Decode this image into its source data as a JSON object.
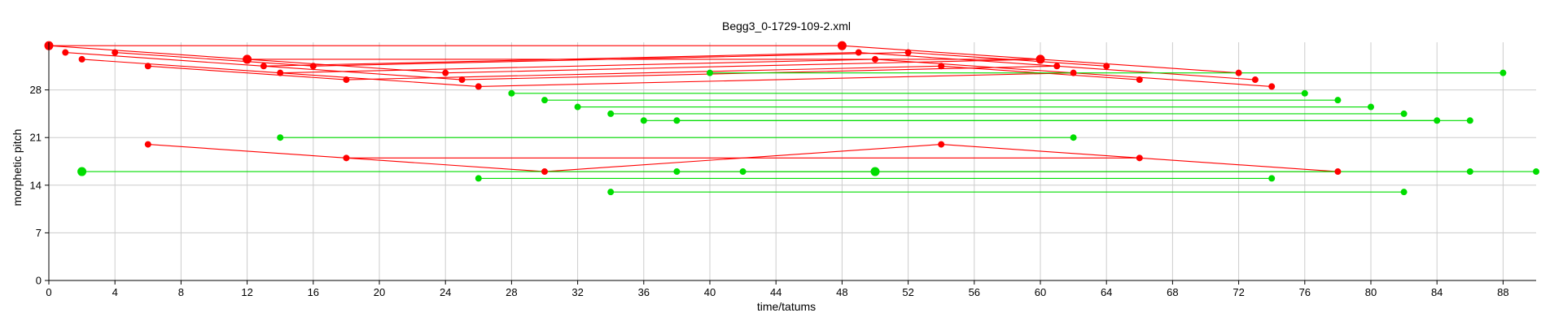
{
  "chart_data": {
    "type": "scatter",
    "title": "Begg3_0-1729-109-2.xml",
    "xlabel": "time/tatums",
    "ylabel": "morphetic pitch",
    "xlim": [
      0,
      90
    ],
    "ylim": [
      0,
      35
    ],
    "xticks": [
      0,
      4,
      8,
      12,
      16,
      20,
      24,
      28,
      32,
      36,
      40,
      44,
      48,
      52,
      56,
      60,
      64,
      68,
      72,
      76,
      80,
      84,
      88
    ],
    "yticks": [
      0,
      7,
      14,
      21,
      28
    ],
    "grid": true,
    "colors": {
      "red": "#ff0000",
      "green": "#00dd00",
      "grid": "#cccccc",
      "axis": "#000000"
    },
    "series": [
      {
        "color": "red",
        "points": [
          {
            "x": 0,
            "y": 34.5,
            "large": true
          },
          {
            "x": 1,
            "y": 33.5
          },
          {
            "x": 2,
            "y": 32.5
          },
          {
            "x": 4,
            "y": 33.5
          },
          {
            "x": 6,
            "y": 31.5
          },
          {
            "x": 12,
            "y": 32.5,
            "large": true
          },
          {
            "x": 13,
            "y": 31.5
          },
          {
            "x": 14,
            "y": 30.5
          },
          {
            "x": 16,
            "y": 31.5
          },
          {
            "x": 18,
            "y": 29.5
          },
          {
            "x": 24,
            "y": 30.5
          },
          {
            "x": 25,
            "y": 29.5
          },
          {
            "x": 26,
            "y": 28.5
          },
          {
            "x": 48,
            "y": 34.5,
            "large": true
          },
          {
            "x": 49,
            "y": 33.5
          },
          {
            "x": 50,
            "y": 32.5
          },
          {
            "x": 52,
            "y": 33.5
          },
          {
            "x": 54,
            "y": 31.5
          },
          {
            "x": 60,
            "y": 32.5,
            "large": true
          },
          {
            "x": 61,
            "y": 31.5
          },
          {
            "x": 62,
            "y": 30.5
          },
          {
            "x": 64,
            "y": 31.5
          },
          {
            "x": 66,
            "y": 29.5
          },
          {
            "x": 72,
            "y": 30.5
          },
          {
            "x": 73,
            "y": 29.5
          },
          {
            "x": 74,
            "y": 28.5
          },
          {
            "x": 6,
            "y": 20
          },
          {
            "x": 18,
            "y": 18
          },
          {
            "x": 30,
            "y": 16
          },
          {
            "x": 54,
            "y": 20
          },
          {
            "x": 66,
            "y": 18
          },
          {
            "x": 78,
            "y": 16
          }
        ],
        "lines": [
          [
            [
              0,
              34.5
            ],
            [
              48,
              34.5
            ]
          ],
          [
            [
              12,
              32.5
            ],
            [
              60,
              32.5
            ]
          ],
          [
            [
              0,
              34.5
            ],
            [
              12,
              32.5
            ]
          ],
          [
            [
              48,
              34.5
            ],
            [
              60,
              32.5
            ]
          ],
          [
            [
              1,
              33.5
            ],
            [
              13,
              31.5
            ]
          ],
          [
            [
              13,
              31.5
            ],
            [
              49,
              33.5
            ]
          ],
          [
            [
              49,
              33.5
            ],
            [
              61,
              31.5
            ]
          ],
          [
            [
              4,
              33.5
            ],
            [
              16,
              31.5
            ]
          ],
          [
            [
              16,
              31.5
            ],
            [
              52,
              33.5
            ]
          ],
          [
            [
              52,
              33.5
            ],
            [
              64,
              31.5
            ]
          ],
          [
            [
              2,
              32.5
            ],
            [
              14,
              30.5
            ]
          ],
          [
            [
              14,
              30.5
            ],
            [
              50,
              32.5
            ]
          ],
          [
            [
              50,
              32.5
            ],
            [
              62,
              30.5
            ]
          ],
          [
            [
              12,
              32.5
            ],
            [
              24,
              30.5
            ]
          ],
          [
            [
              24,
              30.5
            ],
            [
              60,
              32.5
            ]
          ],
          [
            [
              60,
              32.5
            ],
            [
              72,
              30.5
            ]
          ],
          [
            [
              13,
              31.5
            ],
            [
              25,
              29.5
            ]
          ],
          [
            [
              25,
              29.5
            ],
            [
              61,
              31.5
            ]
          ],
          [
            [
              61,
              31.5
            ],
            [
              73,
              29.5
            ]
          ],
          [
            [
              6,
              31.5
            ],
            [
              18,
              29.5
            ]
          ],
          [
            [
              18,
              29.5
            ],
            [
              54,
              31.5
            ]
          ],
          [
            [
              54,
              31.5
            ],
            [
              66,
              29.5
            ]
          ],
          [
            [
              14,
              30.5
            ],
            [
              26,
              28.5
            ]
          ],
          [
            [
              26,
              28.5
            ],
            [
              62,
              30.5
            ]
          ],
          [
            [
              62,
              30.5
            ],
            [
              74,
              28.5
            ]
          ],
          [
            [
              6,
              20
            ],
            [
              18,
              18
            ]
          ],
          [
            [
              18,
              18
            ],
            [
              66,
              18
            ]
          ],
          [
            [
              18,
              18
            ],
            [
              30,
              16
            ]
          ],
          [
            [
              30,
              16
            ],
            [
              54,
              20
            ]
          ],
          [
            [
              54,
              20
            ],
            [
              66,
              18
            ]
          ],
          [
            [
              30,
              16
            ],
            [
              78,
              16
            ]
          ],
          [
            [
              66,
              18
            ],
            [
              78,
              16
            ]
          ]
        ]
      },
      {
        "color": "green",
        "points": [
          {
            "x": 40,
            "y": 30.5
          },
          {
            "x": 88,
            "y": 30.5
          },
          {
            "x": 28,
            "y": 27.5
          },
          {
            "x": 76,
            "y": 27.5
          },
          {
            "x": 30,
            "y": 26.5
          },
          {
            "x": 78,
            "y": 26.5
          },
          {
            "x": 32,
            "y": 25.5
          },
          {
            "x": 80,
            "y": 25.5
          },
          {
            "x": 34,
            "y": 24.5
          },
          {
            "x": 82,
            "y": 24.5
          },
          {
            "x": 36,
            "y": 23.5
          },
          {
            "x": 84,
            "y": 23.5
          },
          {
            "x": 38,
            "y": 23.5
          },
          {
            "x": 86,
            "y": 23.5
          },
          {
            "x": 14,
            "y": 21
          },
          {
            "x": 62,
            "y": 21
          },
          {
            "x": 2,
            "y": 16,
            "large": true
          },
          {
            "x": 50,
            "y": 16,
            "large": true
          },
          {
            "x": 38,
            "y": 16
          },
          {
            "x": 86,
            "y": 16
          },
          {
            "x": 42,
            "y": 16
          },
          {
            "x": 90,
            "y": 16
          },
          {
            "x": 26,
            "y": 15
          },
          {
            "x": 74,
            "y": 15
          },
          {
            "x": 34,
            "y": 13
          },
          {
            "x": 82,
            "y": 13
          }
        ],
        "lines": [
          [
            [
              40,
              30.5
            ],
            [
              88,
              30.5
            ]
          ],
          [
            [
              28,
              27.5
            ],
            [
              76,
              27.5
            ]
          ],
          [
            [
              30,
              26.5
            ],
            [
              78,
              26.5
            ]
          ],
          [
            [
              32,
              25.5
            ],
            [
              80,
              25.5
            ]
          ],
          [
            [
              34,
              24.5
            ],
            [
              82,
              24.5
            ]
          ],
          [
            [
              36,
              23.5
            ],
            [
              84,
              23.5
            ]
          ],
          [
            [
              38,
              23.5
            ],
            [
              86,
              23.5
            ]
          ],
          [
            [
              14,
              21
            ],
            [
              62,
              21
            ]
          ],
          [
            [
              2,
              16
            ],
            [
              50,
              16
            ]
          ],
          [
            [
              38,
              16
            ],
            [
              86,
              16
            ]
          ],
          [
            [
              42,
              16
            ],
            [
              90,
              16
            ]
          ],
          [
            [
              26,
              15
            ],
            [
              74,
              15
            ]
          ],
          [
            [
              34,
              13
            ],
            [
              82,
              13
            ]
          ]
        ]
      }
    ]
  }
}
